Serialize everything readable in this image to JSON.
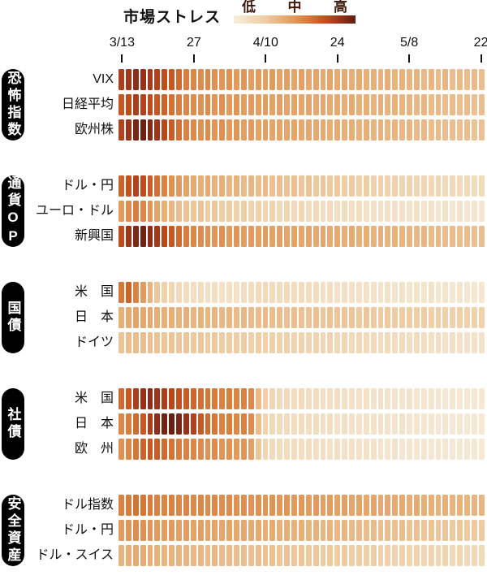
{
  "header": {
    "title": "市場ストレス",
    "legend": {
      "low": "低",
      "mid": "中",
      "high": "高"
    }
  },
  "color_scale": {
    "stops": [
      [
        0,
        "#f7eedd"
      ],
      [
        25,
        "#efcda4"
      ],
      [
        45,
        "#e4a367"
      ],
      [
        60,
        "#d87d3b"
      ],
      [
        75,
        "#c04f1d"
      ],
      [
        88,
        "#96311a"
      ],
      [
        100,
        "#5c1c10"
      ]
    ]
  },
  "chart_data": {
    "type": "heatmap",
    "title": "市場ストレス",
    "legend_labels": [
      "低",
      "中",
      "高"
    ],
    "n_columns": 51,
    "value_range": [
      0,
      100
    ],
    "ticks": [
      {
        "label": "3/13",
        "col": 0
      },
      {
        "label": "27",
        "col": 10
      },
      {
        "label": "4/10",
        "col": 20
      },
      {
        "label": "24",
        "col": 30
      },
      {
        "label": "5/8",
        "col": 40
      },
      {
        "label": "22",
        "col": 50
      }
    ],
    "groups": [
      {
        "label": "恐怖指数",
        "rows": [
          {
            "label": "VIX",
            "values": [
              82,
              85,
              90,
              88,
              84,
              80,
              76,
              72,
              66,
              60,
              56,
              54,
              56,
              52,
              50,
              52,
              48,
              50,
              47,
              48,
              46,
              48,
              45,
              46,
              44,
              46,
              43,
              44,
              42,
              44,
              41,
              42,
              40,
              42,
              39,
              40,
              38,
              40,
              37,
              38,
              36,
              38,
              35,
              36,
              34,
              36,
              33,
              34,
              32,
              34,
              32
            ]
          },
          {
            "label": "日経平均",
            "values": [
              72,
              76,
              82,
              80,
              76,
              72,
              68,
              64,
              60,
              56,
              54,
              52,
              54,
              50,
              52,
              48,
              50,
              47,
              48,
              46,
              47,
              45,
              46,
              44,
              45,
              43,
              44,
              42,
              43,
              41,
              42,
              40,
              41,
              39,
              40,
              38,
              39,
              37,
              38,
              36,
              37,
              35,
              36,
              34,
              35,
              33,
              34,
              32,
              33,
              31,
              32
            ]
          },
          {
            "label": "欧州株",
            "values": [
              80,
              86,
              94,
              97,
              92,
              86,
              78,
              70,
              64,
              58,
              55,
              52,
              54,
              50,
              52,
              48,
              50,
              46,
              48,
              45,
              46,
              44,
              45,
              43,
              44,
              42,
              43,
              41,
              42,
              40,
              41,
              39,
              40,
              38,
              39,
              37,
              38,
              36,
              37,
              35,
              36,
              34,
              35,
              33,
              34,
              32,
              33,
              31,
              32,
              30,
              31
            ]
          }
        ]
      },
      {
        "label": "通貨OP",
        "rows": [
          {
            "label": "ドル・円",
            "values": [
              68,
              74,
              80,
              76,
              70,
              64,
              58,
              52,
              48,
              45,
              42,
              40,
              42,
              38,
              40,
              36,
              38,
              34,
              36,
              33,
              34,
              31,
              32,
              30,
              31,
              28,
              30,
              27,
              28,
              26,
              27,
              24,
              26,
              23,
              24,
              22,
              23,
              20,
              22,
              19,
              20,
              18,
              19,
              17,
              18,
              16,
              17,
              15,
              16,
              14,
              15
            ]
          },
          {
            "label": "ユーロ・ドル",
            "values": [
              48,
              54,
              60,
              56,
              50,
              45,
              40,
              36,
              33,
              30,
              28,
              30,
              26,
              28,
              24,
              26,
              22,
              24,
              20,
              22,
              19,
              20,
              17,
              18,
              16,
              17,
              14,
              16,
              13,
              14,
              12,
              13,
              11,
              12,
              10,
              11,
              9,
              10,
              9,
              10,
              8,
              9,
              8,
              9,
              7,
              8,
              7,
              8,
              6,
              7,
              6
            ]
          },
          {
            "label": "新興国",
            "values": [
              76,
              86,
              93,
              96,
              90,
              84,
              78,
              72,
              66,
              60,
              56,
              54,
              52,
              50,
              52,
              48,
              50,
              47,
              48,
              46,
              47,
              45,
              46,
              44,
              45,
              43,
              44,
              42,
              43,
              41,
              42,
              40,
              41,
              39,
              40,
              38,
              39,
              37,
              38,
              36,
              37,
              35,
              36,
              34,
              35,
              33,
              34,
              32,
              33,
              31,
              32
            ]
          }
        ]
      },
      {
        "label": "国債",
        "rows": [
          {
            "label": "米　国",
            "values": [
              62,
              68,
              58,
              48,
              38,
              28,
              22,
              18,
              15,
              13,
              12,
              13,
              11,
              12,
              10,
              11,
              10,
              12,
              13,
              15,
              16,
              15,
              14,
              15,
              13,
              14,
              12,
              13,
              11,
              12,
              10,
              11,
              9,
              10,
              9,
              10,
              8,
              9,
              8,
              9,
              7,
              8,
              7,
              8,
              6,
              7,
              6,
              7,
              6,
              6,
              5
            ]
          },
          {
            "label": "日　本",
            "values": [
              40,
              42,
              44,
              43,
              42,
              40,
              39,
              40,
              38,
              39,
              37,
              38,
              36,
              37,
              35,
              36,
              34,
              35,
              34,
              33,
              34,
              32,
              33,
              31,
              32,
              31,
              30,
              31,
              29,
              30,
              29,
              28,
              29,
              27,
              28,
              27,
              26,
              27,
              25,
              26,
              25,
              24,
              25,
              23,
              24,
              23,
              22,
              23,
              22,
              21,
              22
            ]
          },
          {
            "label": "ドイツ",
            "values": [
              30,
              32,
              33,
              32,
              31,
              30,
              29,
              30,
              28,
              29,
              27,
              28,
              26,
              27,
              25,
              26,
              24,
              25,
              23,
              24,
              22,
              23,
              21,
              22,
              20,
              21,
              19,
              20,
              18,
              19,
              17,
              18,
              16,
              17,
              15,
              16,
              14,
              15,
              13,
              14,
              12,
              13,
              12,
              11,
              12,
              10,
              11,
              10,
              9,
              10,
              9
            ]
          }
        ]
      },
      {
        "label": "社債",
        "rows": [
          {
            "label": "米　国",
            "values": [
              66,
              72,
              82,
              88,
              90,
              86,
              82,
              78,
              74,
              70,
              67,
              64,
              62,
              60,
              58,
              60,
              57,
              58,
              55,
              34,
              22,
              18,
              16,
              15,
              14,
              15,
              12,
              14,
              12,
              11,
              12,
              10,
              10,
              9,
              10,
              8,
              9,
              8,
              8,
              7,
              8,
              6,
              7,
              6,
              6,
              5,
              6,
              5,
              5,
              5,
              5
            ]
          },
          {
            "label": "日　本",
            "values": [
              56,
              60,
              66,
              72,
              82,
              90,
              96,
              98,
              94,
              88,
              80,
              72,
              66,
              62,
              58,
              60,
              56,
              58,
              54,
              32,
              20,
              17,
              15,
              14,
              13,
              14,
              12,
              13,
              11,
              12,
              10,
              11,
              9,
              10,
              9,
              8,
              9,
              8,
              7,
              8,
              6,
              7,
              6,
              6,
              5,
              6,
              5,
              5,
              4,
              5,
              4
            ]
          },
          {
            "label": "欧　州",
            "values": [
              52,
              56,
              62,
              68,
              72,
              70,
              66,
              63,
              60,
              58,
              56,
              54,
              52,
              54,
              50,
              52,
              48,
              50,
              46,
              28,
              18,
              16,
              14,
              13,
              14,
              12,
              13,
              11,
              12,
              10,
              11,
              9,
              10,
              9,
              8,
              9,
              8,
              7,
              8,
              6,
              7,
              6,
              6,
              5,
              6,
              5,
              5,
              4,
              5,
              4,
              4
            ]
          }
        ]
      },
      {
        "label": "安全資産",
        "rows": [
          {
            "label": "ドル指数",
            "values": [
              58,
              60,
              63,
              62,
              60,
              58,
              57,
              58,
              56,
              57,
              55,
              56,
              54,
              55,
              53,
              54,
              52,
              53,
              51,
              52,
              50,
              51,
              49,
              50,
              48,
              49,
              47,
              48,
              46,
              47,
              45,
              46,
              44,
              45,
              43,
              44,
              42,
              43,
              41,
              42,
              40,
              41,
              39,
              40,
              38,
              39,
              37,
              38,
              36,
              37,
              36
            ]
          },
          {
            "label": "ドル・円",
            "values": [
              48,
              50,
              53,
              52,
              50,
              48,
              47,
              48,
              46,
              47,
              45,
              46,
              44,
              45,
              43,
              44,
              42,
              43,
              41,
              42,
              40,
              41,
              39,
              40,
              38,
              39,
              37,
              38,
              36,
              37,
              35,
              36,
              34,
              35,
              33,
              34,
              32,
              33,
              31,
              32,
              30,
              31,
              29,
              30,
              28,
              29,
              27,
              28,
              26,
              27,
              26
            ]
          },
          {
            "label": "ドル・スイス",
            "values": [
              38,
              40,
              42,
              41,
              40,
              38,
              37,
              38,
              36,
              37,
              35,
              36,
              34,
              35,
              33,
              34,
              32,
              33,
              31,
              32,
              30,
              31,
              29,
              30,
              28,
              29,
              27,
              28,
              26,
              27,
              25,
              26,
              24,
              25,
              23,
              24,
              22,
              23,
              21,
              22,
              20,
              21,
              19,
              20,
              18,
              19,
              17,
              18,
              16,
              17,
              16
            ]
          }
        ]
      }
    ]
  }
}
